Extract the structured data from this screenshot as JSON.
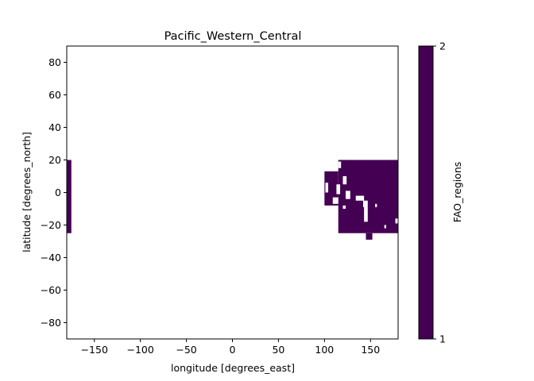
{
  "chart_data": {
    "type": "heatmap",
    "title": "Pacific_Western_Central",
    "xlabel": "longitude [degrees_east]",
    "ylabel": "latitude [degrees_north]",
    "xlim": [
      -180,
      180
    ],
    "ylim": [
      -90,
      90
    ],
    "x_ticks": [
      -150,
      -100,
      -50,
      0,
      50,
      100,
      150
    ],
    "y_ticks": [
      -80,
      -60,
      -40,
      -20,
      0,
      20,
      40,
      60,
      80
    ],
    "x_tick_labels": [
      "−150",
      "−100",
      "−50",
      "0",
      "50",
      "100",
      "150"
    ],
    "y_tick_labels": [
      "−80",
      "−60",
      "−40",
      "−20",
      "0",
      "20",
      "40",
      "60",
      "80"
    ],
    "colorbar": {
      "label": "FAO_regions",
      "range": [
        1,
        2
      ],
      "tick_labels": [
        "1",
        "2"
      ],
      "colormap": "viridis",
      "fill_color": "#440154"
    },
    "region_color": "#440154",
    "regions": [
      {
        "lon": [
          -180,
          -175
        ],
        "lat": [
          -25,
          20
        ]
      },
      {
        "lon": [
          115,
          180
        ],
        "lat": [
          -25,
          20
        ]
      },
      {
        "lon": [
          100,
          115
        ],
        "lat": [
          -8,
          13
        ]
      },
      {
        "lon": [
          145,
          152
        ],
        "lat": [
          -29,
          -25
        ]
      }
    ],
    "land_gaps": [
      {
        "lon": [
          101,
          104
        ],
        "lat": [
          0,
          6
        ]
      },
      {
        "lon": [
          109,
          115
        ],
        "lat": [
          -7,
          -3
        ]
      },
      {
        "lon": [
          115,
          118
        ],
        "lat": [
          15,
          19
        ]
      },
      {
        "lon": [
          120,
          124
        ],
        "lat": [
          5,
          10
        ]
      },
      {
        "lon": [
          113,
          117
        ],
        "lat": [
          -1,
          5
        ]
      },
      {
        "lon": [
          123,
          128
        ],
        "lat": [
          -4,
          1
        ]
      },
      {
        "lon": [
          134,
          143
        ],
        "lat": [
          -5,
          -2
        ]
      },
      {
        "lon": [
          142,
          147
        ],
        "lat": [
          -9,
          -5
        ]
      },
      {
        "lon": [
          143,
          147
        ],
        "lat": [
          -18,
          -9
        ]
      },
      {
        "lon": [
          155,
          157
        ],
        "lat": [
          -9,
          -7
        ]
      },
      {
        "lon": [
          165,
          167
        ],
        "lat": [
          -22,
          -20
        ]
      },
      {
        "lon": [
          177,
          180
        ],
        "lat": [
          -19,
          -16
        ]
      },
      {
        "lon": [
          120,
          123
        ],
        "lat": [
          -10,
          -8
        ]
      }
    ]
  }
}
